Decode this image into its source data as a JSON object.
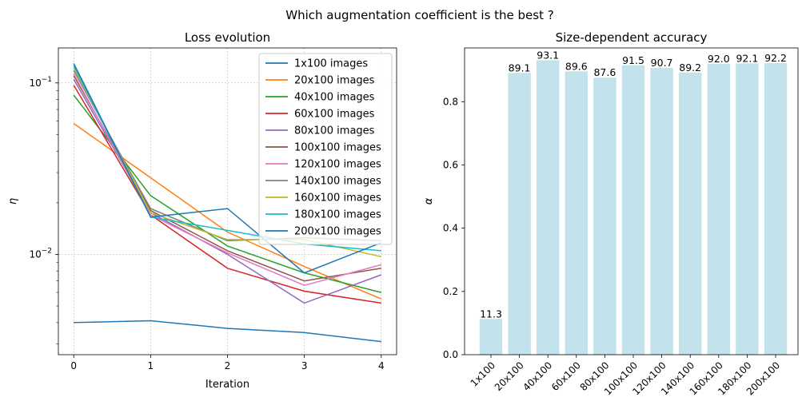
{
  "suptitle": "Which augmentation coefficient is the best ?",
  "chart_data": [
    {
      "type": "line",
      "title": "Loss evolution",
      "xlabel": "Iteration",
      "ylabel": "η",
      "yscale": "log",
      "grid": true,
      "legend_position": "upper-right",
      "x": [
        0,
        1,
        2,
        3,
        4
      ],
      "xlim": [
        -0.2,
        4.2
      ],
      "ylim": [
        0.0026,
        0.16
      ],
      "xticks": [
        "0",
        "1",
        "2",
        "3",
        "4"
      ],
      "yticks": [
        {
          "value": 0.01,
          "base": "10",
          "exp": "−2"
        },
        {
          "value": 0.1,
          "base": "10",
          "exp": "−1"
        }
      ],
      "series": [
        {
          "name": "1x100 images",
          "color": "#1f77b4",
          "values": [
            0.004,
            0.0041,
            0.0037,
            0.0035,
            0.0031
          ]
        },
        {
          "name": "20x100 images",
          "color": "#ff7f0e",
          "values": [
            0.058,
            0.028,
            0.0135,
            0.0085,
            0.0055
          ]
        },
        {
          "name": "40x100 images",
          "color": "#2ca02c",
          "values": [
            0.085,
            0.022,
            0.0112,
            0.0078,
            0.006
          ]
        },
        {
          "name": "60x100 images",
          "color": "#d62728",
          "values": [
            0.097,
            0.017,
            0.0083,
            0.0061,
            0.0052
          ]
        },
        {
          "name": "80x100 images",
          "color": "#9467bd",
          "values": [
            0.105,
            0.0175,
            0.01,
            0.0052,
            0.0076
          ]
        },
        {
          "name": "100x100 images",
          "color": "#8c564b",
          "values": [
            0.11,
            0.018,
            0.0105,
            0.007,
            0.0083
          ]
        },
        {
          "name": "120x100 images",
          "color": "#e377c2",
          "values": [
            0.113,
            0.017,
            0.0102,
            0.0066,
            0.0087
          ]
        },
        {
          "name": "140x100 images",
          "color": "#7f7f7f",
          "values": [
            0.118,
            0.0185,
            0.012,
            0.0125,
            0.012
          ]
        },
        {
          "name": "160x100 images",
          "color": "#bcbd22",
          "values": [
            0.122,
            0.0175,
            0.0122,
            0.0122,
            0.0097
          ]
        },
        {
          "name": "180x100 images",
          "color": "#17becf",
          "values": [
            0.126,
            0.0165,
            0.0138,
            0.0115,
            0.0105
          ]
        },
        {
          "name": "200x100 images",
          "color": "#1f77b4",
          "values": [
            0.13,
            0.0165,
            0.0185,
            0.0078,
            0.0117
          ]
        }
      ]
    },
    {
      "type": "bar",
      "title": "Size-dependent accuracy",
      "xlabel": "",
      "ylabel": "α",
      "ylim": [
        0,
        0.97
      ],
      "yticks": [
        "0.0",
        "0.2",
        "0.4",
        "0.6",
        "0.8"
      ],
      "bar_color": "#add8e6",
      "categories": [
        "1x100",
        "20x100",
        "40x100",
        "60x100",
        "80x100",
        "100x100",
        "120x100",
        "140x100",
        "160x100",
        "180x100",
        "200x100"
      ],
      "values": [
        0.113,
        0.891,
        0.931,
        0.896,
        0.876,
        0.915,
        0.907,
        0.892,
        0.92,
        0.921,
        0.922
      ],
      "labels": [
        "11.3",
        "89.1",
        "93.1",
        "89.6",
        "87.6",
        "91.5",
        "90.7",
        "89.2",
        "92.0",
        "92.1",
        "92.2"
      ]
    }
  ]
}
